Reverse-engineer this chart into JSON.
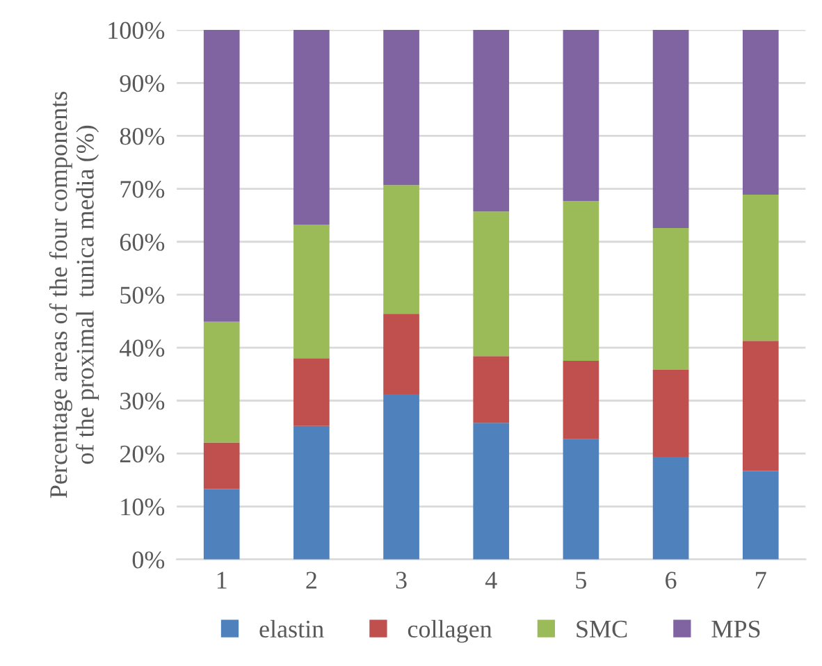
{
  "chart_data": {
    "type": "bar",
    "stacked": true,
    "ylabel": "Percentage areas of the four components\nof the proximal  tunica media (%)",
    "categories": [
      "1",
      "2",
      "3",
      "4",
      "5",
      "6",
      "7"
    ],
    "series": [
      {
        "name": "elastin",
        "color": "#4f81bd",
        "values": [
          13.3,
          25.2,
          31.2,
          25.8,
          22.7,
          19.4,
          16.7
        ]
      },
      {
        "name": "collagen",
        "color": "#c0504d",
        "values": [
          8.8,
          12.8,
          15.2,
          12.6,
          14.8,
          16.4,
          24.6
        ]
      },
      {
        "name": "SMC",
        "color": "#9bbb59",
        "values": [
          22.8,
          25.2,
          24.3,
          27.3,
          30.2,
          26.8,
          27.6
        ]
      },
      {
        "name": "MPS",
        "color": "#8064a2",
        "values": [
          55.1,
          36.8,
          29.3,
          34.3,
          32.3,
          37.4,
          31.1
        ]
      }
    ],
    "ylim": [
      0,
      100
    ],
    "yticks": [
      {
        "value": 0,
        "label": "0%"
      },
      {
        "value": 10,
        "label": "10%"
      },
      {
        "value": 20,
        "label": "20%"
      },
      {
        "value": 30,
        "label": "30%"
      },
      {
        "value": 40,
        "label": "40%"
      },
      {
        "value": 50,
        "label": "50%"
      },
      {
        "value": 60,
        "label": "60%"
      },
      {
        "value": 70,
        "label": "70%"
      },
      {
        "value": 80,
        "label": "80%"
      },
      {
        "value": 90,
        "label": "90%"
      },
      {
        "value": 100,
        "label": "100%"
      }
    ],
    "grid": "y",
    "legend": "bottom"
  }
}
